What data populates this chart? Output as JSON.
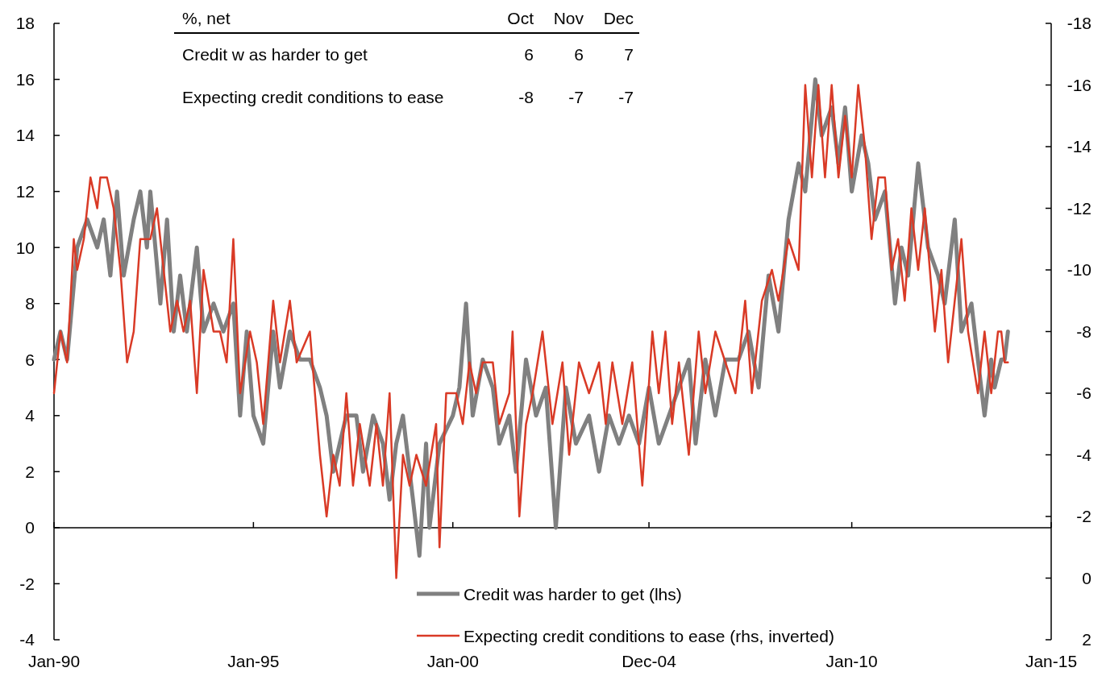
{
  "chart_data": {
    "type": "line",
    "xlim": [
      "1990-01",
      "2015-01"
    ],
    "xticks": [
      {
        "value": "1990-01",
        "label": "Jan-90"
      },
      {
        "value": "1995-01",
        "label": "Jan-95"
      },
      {
        "value": "2000-01",
        "label": "Jan-00"
      },
      {
        "value": "2004-12",
        "label": "Dec-04"
      },
      {
        "value": "2010-01",
        "label": "Jan-10"
      },
      {
        "value": "2015-01",
        "label": "Jan-15"
      }
    ],
    "ylim": [
      -4,
      18
    ],
    "yticks": [
      -4,
      -2,
      0,
      2,
      4,
      6,
      8,
      10,
      12,
      14,
      16,
      18
    ],
    "y2lim": [
      2,
      -18
    ],
    "y2ticks": [
      2,
      0,
      -2,
      -4,
      -6,
      -8,
      -10,
      -12,
      -14,
      -16,
      -18
    ],
    "legend": "bottom",
    "marker": "none",
    "line_style": "solid",
    "annotations": [
      "%, net",
      "Oct",
      "Nov",
      "Dec",
      "Credit w as harder to get",
      "6",
      "6",
      "7",
      "Expecting credit conditions to ease",
      "-8",
      "-7",
      "-7"
    ],
    "series": [
      {
        "name": "Credit was harder to get (lhs)",
        "color": "#808080",
        "x": [
          "1990-01",
          "1990-03",
          "1990-05",
          "1990-08",
          "1990-11",
          "1991-02",
          "1991-04",
          "1991-06",
          "1991-08",
          "1991-10",
          "1992-01",
          "1992-03",
          "1992-05",
          "1992-06",
          "1992-09",
          "1992-11",
          "1993-01",
          "1993-03",
          "1993-05",
          "1993-08",
          "1993-10",
          "1994-01",
          "1994-04",
          "1994-07",
          "1994-09",
          "1994-11",
          "1995-01",
          "1995-04",
          "1995-07",
          "1995-09",
          "1995-12",
          "1996-03",
          "1996-06",
          "1996-09",
          "1996-11",
          "1997-01",
          "1997-03",
          "1997-05",
          "1997-08",
          "1997-10",
          "1998-01",
          "1998-04",
          "1998-06",
          "1998-08",
          "1998-10",
          "1999-01",
          "1999-03",
          "1999-05",
          "1999-06",
          "1999-09",
          "2000-01",
          "2000-03",
          "2000-05",
          "2000-07",
          "2000-10",
          "2001-01",
          "2001-03",
          "2001-06",
          "2001-08",
          "2001-11",
          "2002-02",
          "2002-05",
          "2002-08",
          "2002-11",
          "2003-02",
          "2003-06",
          "2003-09",
          "2003-12",
          "2004-03",
          "2004-06",
          "2004-09",
          "2004-12",
          "2005-03",
          "2005-06",
          "2005-09",
          "2005-12",
          "2006-02",
          "2006-05",
          "2006-08",
          "2006-11",
          "2007-03",
          "2007-06",
          "2007-09",
          "2007-12",
          "2008-03",
          "2008-06",
          "2008-09",
          "2008-11",
          "2009-02",
          "2009-04",
          "2009-07",
          "2009-09",
          "2009-11",
          "2010-01",
          "2010-04",
          "2010-06",
          "2010-08",
          "2010-11",
          "2011-02",
          "2011-04",
          "2011-06",
          "2011-09",
          "2011-12",
          "2012-03",
          "2012-05",
          "2012-08",
          "2012-10",
          "2013-01",
          "2013-03",
          "2013-05",
          "2013-07",
          "2013-08",
          "2013-10",
          "2013-11",
          "2013-12"
        ],
        "values": [
          6,
          7,
          6,
          10,
          11,
          10,
          11,
          9,
          12,
          9,
          11,
          12,
          10,
          12,
          8,
          11,
          7,
          9,
          7,
          10,
          7,
          8,
          7,
          8,
          4,
          7,
          4,
          3,
          7,
          5,
          7,
          6,
          6,
          5,
          4,
          2,
          3,
          4,
          4,
          2,
          4,
          3,
          1,
          3,
          4,
          1,
          -1,
          3,
          0,
          3,
          4,
          5,
          8,
          4,
          6,
          5,
          3,
          4,
          2,
          6,
          4,
          5,
          0,
          5,
          3,
          4,
          2,
          4,
          3,
          4,
          3,
          5,
          3,
          4,
          5,
          6,
          3,
          6,
          4,
          6,
          6,
          7,
          5,
          9,
          7,
          11,
          13,
          12,
          16,
          14,
          15,
          13,
          15,
          12,
          14,
          13,
          11,
          12,
          8,
          10,
          9,
          13,
          10,
          9,
          8,
          11,
          7,
          8,
          6,
          4,
          6,
          5,
          6,
          6,
          7
        ]
      },
      {
        "name": "Expecting credit conditions to ease (rhs, inverted)",
        "color": "#d93a26",
        "axis": "y2",
        "x": [
          "1990-01",
          "1990-03",
          "1990-05",
          "1990-07",
          "1990-08",
          "1990-10",
          "1990-12",
          "1991-02",
          "1991-03",
          "1991-05",
          "1991-07",
          "1991-09",
          "1991-11",
          "1992-01",
          "1992-03",
          "1992-06",
          "1992-08",
          "1992-10",
          "1992-12",
          "1993-02",
          "1993-04",
          "1993-06",
          "1993-08",
          "1993-10",
          "1994-01",
          "1994-03",
          "1994-05",
          "1994-07",
          "1994-09",
          "1994-12",
          "1995-02",
          "1995-04",
          "1995-07",
          "1995-09",
          "1995-12",
          "1996-02",
          "1996-06",
          "1996-09",
          "1996-11",
          "1997-01",
          "1997-03",
          "1997-05",
          "1997-07",
          "1997-09",
          "1997-12",
          "1998-02",
          "1998-04",
          "1998-06",
          "1998-08",
          "1998-10",
          "1998-12",
          "1999-02",
          "1999-05",
          "1999-08",
          "1999-09",
          "1999-11",
          "2000-02",
          "2000-04",
          "2000-06",
          "2000-08",
          "2000-10",
          "2001-01",
          "2001-03",
          "2001-06",
          "2001-07",
          "2001-09",
          "2001-11",
          "2002-01",
          "2002-04",
          "2002-07",
          "2002-10",
          "2002-12",
          "2003-03",
          "2003-06",
          "2003-09",
          "2003-11",
          "2004-01",
          "2004-04",
          "2004-07",
          "2004-10",
          "2005-01",
          "2005-03",
          "2005-05",
          "2005-07",
          "2005-09",
          "2005-12",
          "2006-03",
          "2006-05",
          "2006-08",
          "2006-11",
          "2007-02",
          "2007-05",
          "2007-07",
          "2007-10",
          "2008-01",
          "2008-03",
          "2008-06",
          "2008-09",
          "2008-11",
          "2009-01",
          "2009-03",
          "2009-05",
          "2009-07",
          "2009-09",
          "2009-11",
          "2010-01",
          "2010-03",
          "2010-05",
          "2010-07",
          "2010-09",
          "2010-11",
          "2011-01",
          "2011-03",
          "2011-05",
          "2011-07",
          "2011-09",
          "2011-11",
          "2012-02",
          "2012-04",
          "2012-06",
          "2012-08",
          "2012-10",
          "2012-12",
          "2013-03",
          "2013-05",
          "2013-07",
          "2013-09",
          "2013-10",
          "2013-11",
          "2013-12"
        ],
        "values": [
          -6,
          -8,
          -7,
          -11,
          -10,
          -11,
          -13,
          -12,
          -13,
          -13,
          -12,
          -10,
          -7,
          -8,
          -11,
          -11,
          -12,
          -10,
          -8,
          -9,
          -8,
          -9,
          -6,
          -10,
          -8,
          -8,
          -7,
          -11,
          -6,
          -8,
          -7,
          -5,
          -9,
          -7,
          -9,
          -7,
          -8,
          -4,
          -2,
          -4,
          -3,
          -6,
          -3,
          -5,
          -3,
          -5,
          -3,
          -6,
          0,
          -4,
          -3,
          -4,
          -3,
          -5,
          -1,
          -6,
          -6,
          -5,
          -7,
          -6,
          -7,
          -7,
          -5,
          -6,
          -8,
          -2,
          -5,
          -6,
          -8,
          -5,
          -7,
          -4,
          -7,
          -6,
          -7,
          -5,
          -7,
          -5,
          -7,
          -3,
          -8,
          -6,
          -8,
          -5,
          -7,
          -4,
          -8,
          -6,
          -8,
          -7,
          -6,
          -9,
          -6,
          -9,
          -10,
          -9,
          -11,
          -10,
          -16,
          -13,
          -16,
          -13,
          -16,
          -13,
          -15,
          -13,
          -16,
          -14,
          -11,
          -13,
          -13,
          -10,
          -11,
          -9,
          -12,
          -10,
          -12,
          -8,
          -10,
          -7,
          -9,
          -11,
          -8,
          -6,
          -8,
          -6,
          -8,
          -8,
          -7,
          -7
        ]
      }
    ]
  }
}
